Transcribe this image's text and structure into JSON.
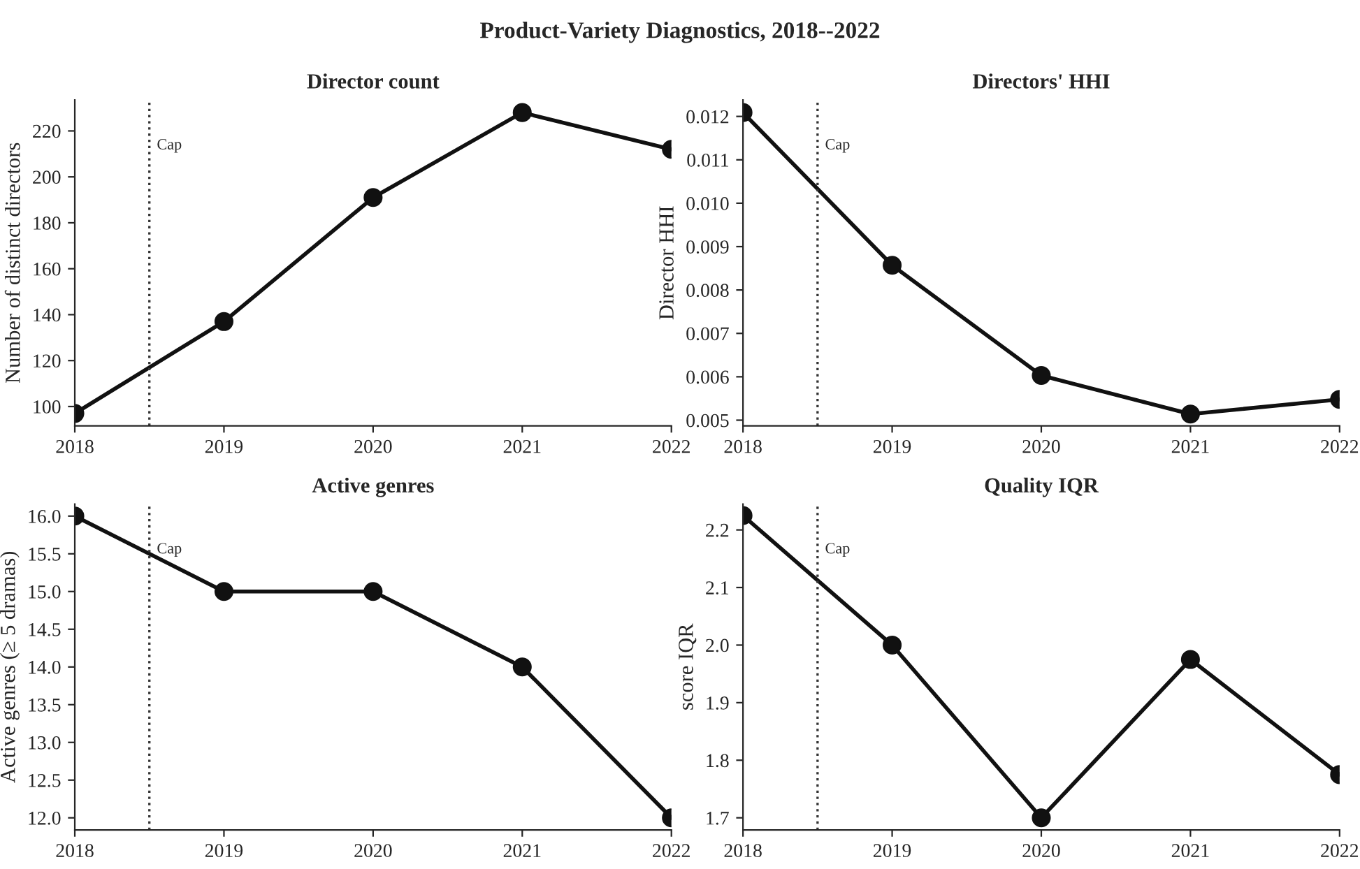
{
  "chart_data": [
    {
      "type": "line",
      "annotations": [
        "Product-Variety Diagnostics, 2018--2022"
      ],
      "title": "Director count",
      "ylabel": "Number of distinct directors",
      "x": [
        2018,
        2019,
        2020,
        2021,
        2022
      ],
      "series": [
        {
          "color": "#111111",
          "values": [
            97,
            137,
            191,
            228,
            212
          ]
        }
      ],
      "xlim": [
        2018,
        2022
      ],
      "xticks": [
        2018,
        2019,
        2020,
        2021,
        2022
      ],
      "ylim": [
        91.6,
        233.5
      ],
      "yticks": [
        100,
        120,
        140,
        160,
        180,
        200,
        220
      ],
      "ref_lines": [
        {
          "axis": "x",
          "value": 2018.5,
          "label": "Cap",
          "color": "#333333",
          "line_style": "dotted"
        }
      ],
      "marker": "circle",
      "line_style": "solid",
      "grid": false,
      "legend": false
    },
    {
      "type": "line",
      "title": "Directors' HHI",
      "ylabel": "Director HHI",
      "x": [
        2018,
        2019,
        2020,
        2021,
        2022
      ],
      "series": [
        {
          "color": "#111111",
          "values": [
            0.01209,
            0.00857,
            0.00603,
            0.00514,
            0.00548
          ]
        }
      ],
      "xlim": [
        2018,
        2022
      ],
      "xticks": [
        2018,
        2019,
        2020,
        2021,
        2022
      ],
      "ylim": [
        0.00487,
        0.01238
      ],
      "yticks": [
        {
          "value": 0.005,
          "label": "0.005"
        },
        {
          "value": 0.006,
          "label": "0.006"
        },
        {
          "value": 0.007,
          "label": "0.007"
        },
        {
          "value": 0.008,
          "label": "0.008"
        },
        {
          "value": 0.009,
          "label": "0.009"
        },
        {
          "value": 0.01,
          "label": "0.010"
        },
        {
          "value": 0.011,
          "label": "0.011"
        },
        {
          "value": 0.012,
          "label": "0.012"
        }
      ],
      "ref_lines": [
        {
          "axis": "x",
          "value": 2018.5,
          "label": "Cap",
          "color": "#333333",
          "line_style": "dotted"
        }
      ],
      "marker": "circle",
      "line_style": "solid",
      "grid": false,
      "legend": false
    },
    {
      "type": "line",
      "title": "Active genres",
      "ylabel": "Active genres (≥ 5 dramas)",
      "x": [
        2018,
        2019,
        2020,
        2021,
        2022
      ],
      "series": [
        {
          "color": "#111111",
          "values": [
            16,
            15,
            15,
            14,
            12
          ]
        }
      ],
      "xlim": [
        2018,
        2022
      ],
      "xticks": [
        2018,
        2019,
        2020,
        2021,
        2022
      ],
      "ylim": [
        11.84,
        16.16
      ],
      "yticks": [
        {
          "value": 12,
          "label": "12.0"
        },
        {
          "value": 12.5,
          "label": "12.5"
        },
        {
          "value": 13,
          "label": "13.0"
        },
        {
          "value": 13.5,
          "label": "13.5"
        },
        {
          "value": 14,
          "label": "14.0"
        },
        {
          "value": 14.5,
          "label": "14.5"
        },
        {
          "value": 15,
          "label": "15.0"
        },
        {
          "value": 15.5,
          "label": "15.5"
        },
        {
          "value": 16,
          "label": "16.0"
        }
      ],
      "ref_lines": [
        {
          "axis": "x",
          "value": 2018.5,
          "label": "Cap",
          "color": "#333333",
          "line_style": "dotted"
        }
      ],
      "marker": "circle",
      "line_style": "solid",
      "grid": false,
      "legend": false
    },
    {
      "type": "line",
      "title": "Quality IQR",
      "ylabel": "score IQR",
      "x": [
        2018,
        2019,
        2020,
        2021,
        2022
      ],
      "series": [
        {
          "color": "#111111",
          "values": [
            2.225,
            2.0,
            1.7,
            1.975,
            1.775
          ]
        }
      ],
      "xlim": [
        2018,
        2022
      ],
      "xticks": [
        2018,
        2019,
        2020,
        2021,
        2022
      ],
      "ylim": [
        1.679,
        2.245
      ],
      "yticks": [
        1.7,
        1.8,
        1.9,
        {
          "value": 2.0,
          "label": "2.0"
        },
        2.1,
        2.2
      ],
      "ref_lines": [
        {
          "axis": "x",
          "value": 2018.5,
          "label": "Cap",
          "color": "#333333",
          "line_style": "dotted"
        }
      ],
      "marker": "circle",
      "line_style": "solid",
      "grid": false,
      "legend": false
    }
  ]
}
